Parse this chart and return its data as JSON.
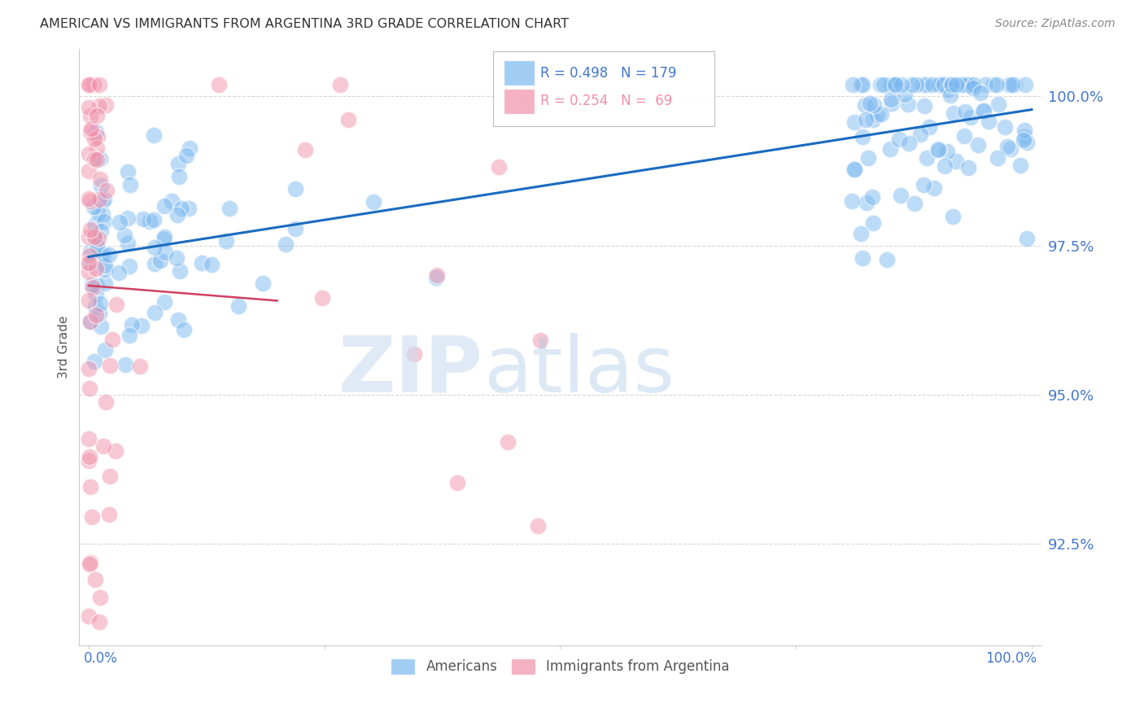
{
  "title": "AMERICAN VS IMMIGRANTS FROM ARGENTINA 3RD GRADE CORRELATION CHART",
  "source": "Source: ZipAtlas.com",
  "ylabel": "3rd Grade",
  "ytick_labels": [
    "92.5%",
    "95.0%",
    "97.5%",
    "100.0%"
  ],
  "ytick_values": [
    0.925,
    0.95,
    0.975,
    1.0
  ],
  "xlim": [
    -0.01,
    1.01
  ],
  "ylim": [
    0.908,
    1.008
  ],
  "blue_color": "#7ab8f0",
  "pink_color": "#f090aa",
  "trend_blue": "#1a6bc0",
  "trend_pink": "#d04060",
  "background_color": "#ffffff",
  "grid_color": "#cccccc",
  "axis_label_color": "#4477cc",
  "title_color": "#333333",
  "seed_blue": 77,
  "seed_pink": 55,
  "n_blue": 179,
  "n_pink": 69,
  "legend_text_blue": "R = 0.498   N = 179",
  "legend_text_pink": "R = 0.254   N =  69"
}
